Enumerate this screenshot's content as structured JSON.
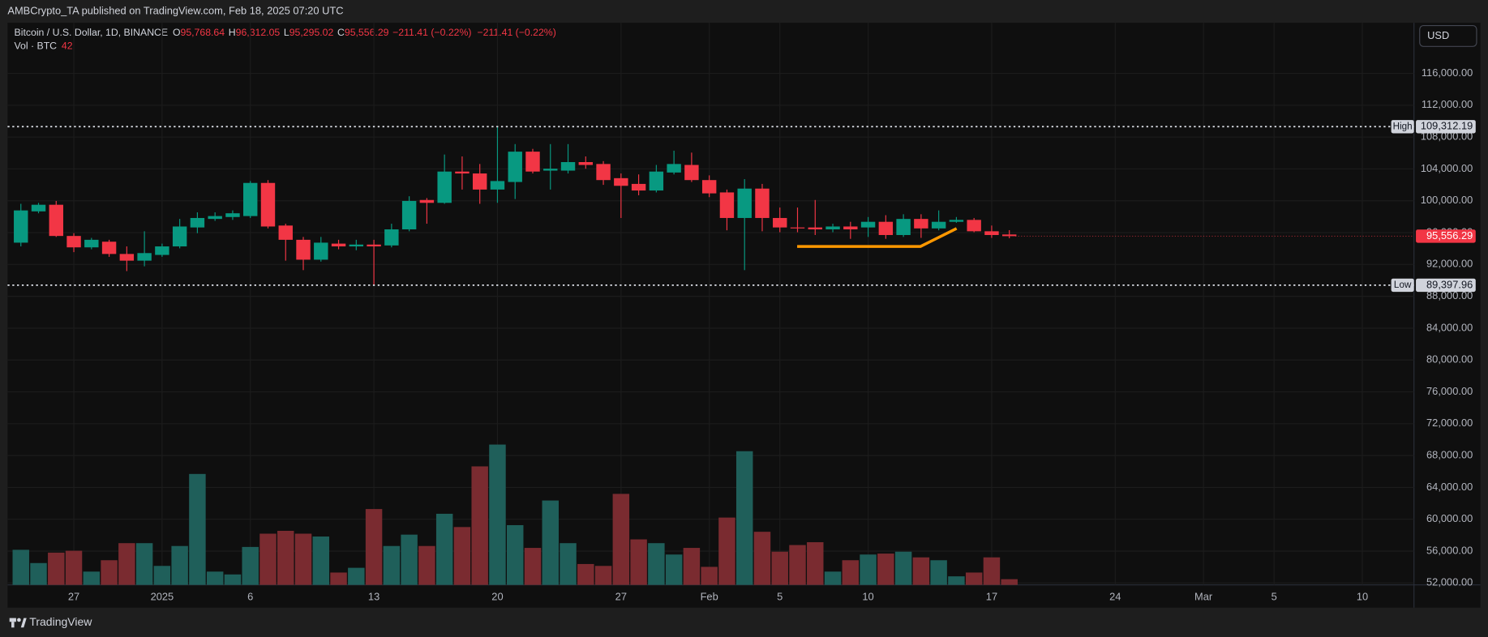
{
  "header": {
    "text": "AMBCrypto_TA published on TradingView.com, Feb 18, 2025 07:20 UTC"
  },
  "footer": {
    "brand": "TradingView"
  },
  "currency_button": "USD",
  "chart_data": {
    "type": "candlestick",
    "legend": {
      "symbol": "Bitcoin / U.S. Dollar, 1D, BINANCE",
      "items": [
        {
          "key": "O",
          "value": "95,768.64"
        },
        {
          "key": "H",
          "value": "96,312.05"
        },
        {
          "key": "L",
          "value": "95,295.02"
        },
        {
          "key": "C",
          "value": "95,556.29"
        }
      ],
      "changes": [
        "−211.41 (−0.22%)",
        "−211.41 (−0.22%)"
      ]
    },
    "volume_legend": {
      "label": "Vol · BTC",
      "value": "42"
    },
    "categories": [
      null,
      null,
      null,
      "27",
      null,
      null,
      null,
      null,
      "2025",
      null,
      null,
      null,
      null,
      "6",
      null,
      null,
      null,
      null,
      null,
      null,
      "13",
      null,
      null,
      null,
      null,
      null,
      null,
      "20",
      null,
      null,
      null,
      null,
      null,
      null,
      "27",
      null,
      null,
      null,
      null,
      "Feb",
      null,
      null,
      null,
      "5",
      null,
      null,
      null,
      null,
      "10",
      null,
      null,
      null,
      null,
      null,
      null,
      "17",
      null,
      null,
      null,
      null,
      null,
      null,
      "24",
      null,
      null,
      null,
      null,
      "Mar",
      null,
      null,
      null,
      "5",
      null,
      null,
      null,
      null,
      "10",
      null,
      null
    ],
    "open": [
      94740,
      98670,
      99500,
      95580,
      94150,
      94860,
      93320,
      92480,
      93200,
      94270,
      96650,
      97720,
      97960,
      98080,
      102240,
      96890,
      95100,
      92600,
      94620,
      94270,
      94500,
      94390,
      96410,
      100100,
      99740,
      103670,
      103430,
      101410,
      102360,
      106170,
      103790,
      103790,
      104860,
      104620,
      102840,
      102120,
      101290,
      103550,
      104500,
      102600,
      101050,
      97840,
      101530,
      97840,
      96650,
      96650,
      96410,
      96770,
      96650,
      97360,
      95700,
      97720,
      96530,
      97360,
      97600,
      96170,
      95768.64,
      null,
      null,
      null,
      null,
      null,
      null,
      null,
      null,
      null,
      null,
      null,
      null,
      null,
      null,
      null,
      null,
      null,
      null,
      null,
      null,
      null,
      null
    ],
    "high": [
      99620,
      99740,
      99980,
      95930,
      95340,
      95100,
      94270,
      96170,
      94620,
      97720,
      98550,
      98550,
      98790,
      102480,
      102600,
      97120,
      95460,
      95460,
      95100,
      95100,
      95100,
      97120,
      100570,
      100340,
      105810,
      105570,
      104620,
      109312.19,
      107120,
      106520,
      107120,
      107120,
      105570,
      104980,
      103430,
      103310,
      104500,
      106290,
      106050,
      103190,
      101410,
      102720,
      102120,
      99150,
      99150,
      100100,
      97120,
      97360,
      97960,
      98190,
      98310,
      98310,
      98790,
      97960,
      97840,
      96890,
      96312.05,
      null,
      null,
      null,
      null,
      null,
      null,
      null,
      null,
      null,
      null,
      null,
      null,
      null,
      null,
      null,
      null,
      null,
      null,
      null,
      null,
      null,
      null
    ],
    "low": [
      94270,
      98430,
      95460,
      93550,
      93910,
      92960,
      91170,
      91770,
      92960,
      94030,
      95930,
      97480,
      97600,
      97840,
      96530,
      92480,
      91290,
      92360,
      93910,
      93790,
      89397.96,
      94150,
      96170,
      97120,
      99620,
      101410,
      99620,
      99740,
      100220,
      103430,
      101410,
      103430,
      104030,
      102000,
      97840,
      100690,
      101050,
      103310,
      102360,
      100460,
      96290,
      91290,
      96170,
      96050,
      96050,
      95700,
      96050,
      95220,
      95460,
      95220,
      95460,
      95340,
      96290,
      97240,
      96050,
      95340,
      95295.02,
      null,
      null,
      null,
      null,
      null,
      null,
      null,
      null,
      null,
      null,
      null,
      null,
      null,
      null,
      null,
      null,
      null,
      null,
      null,
      null,
      null,
      null
    ],
    "close": [
      98790,
      99500,
      95580,
      94150,
      95100,
      93320,
      92480,
      93430,
      94270,
      96770,
      97840,
      98080,
      98430,
      102240,
      96770,
      95100,
      92600,
      94740,
      94270,
      94500,
      94270,
      96410,
      99980,
      99740,
      103670,
      103430,
      101410,
      102480,
      106170,
      103670,
      104030,
      104860,
      104500,
      102600,
      101880,
      101290,
      103670,
      104620,
      102600,
      100930,
      97840,
      101530,
      97840,
      96650,
      96530,
      96410,
      96770,
      96410,
      97360,
      95700,
      97720,
      96530,
      97360,
      97600,
      96170,
      95700,
      95556.29,
      null,
      null,
      null,
      null,
      null,
      null,
      null,
      null,
      null,
      null,
      null,
      null,
      null,
      null,
      null,
      null,
      null,
      null,
      null,
      null,
      null,
      null
    ],
    "volume": [
      259,
      161,
      238,
      252,
      98,
      182,
      308,
      308,
      140,
      287,
      819,
      98,
      77,
      280,
      378,
      399,
      378,
      357,
      91,
      126,
      560,
      287,
      371,
      287,
      525,
      427,
      875,
      1036,
      441,
      273,
      623,
      308,
      154,
      140,
      672,
      336,
      308,
      224,
      273,
      133,
      497,
      987,
      392,
      245,
      294,
      315,
      98,
      182,
      224,
      231,
      245,
      203,
      182,
      63,
      91,
      203,
      42,
      null,
      null,
      null,
      null,
      null,
      null,
      null,
      null,
      null,
      null,
      null,
      null,
      null,
      null,
      null,
      null,
      null,
      null,
      null,
      null,
      null,
      null
    ],
    "up_color": "#089981",
    "down_color": "#f23645",
    "volume_up_color": "#1f5f5a",
    "volume_down_color": "#7a2b30",
    "ylim": [
      51760,
      122360
    ],
    "yticks": [
      {
        "value": 52000,
        "label": "52,000.00"
      },
      {
        "value": 56000,
        "label": "56,000.00"
      },
      {
        "value": 60000,
        "label": "60,000.00"
      },
      {
        "value": 64000,
        "label": "64,000.00"
      },
      {
        "value": 68000,
        "label": "68,000.00"
      },
      {
        "value": 72000,
        "label": "72,000.00"
      },
      {
        "value": 76000,
        "label": "76,000.00"
      },
      {
        "value": 80000,
        "label": "80,000.00"
      },
      {
        "value": 84000,
        "label": "84,000.00"
      },
      {
        "value": 88000,
        "label": "88,000.00"
      },
      {
        "value": 92000,
        "label": "92,000.00"
      },
      {
        "value": 96000,
        "label": "96,000.00"
      },
      {
        "value": 100000,
        "label": "100,000.00"
      },
      {
        "value": 104000,
        "label": "104,000.00"
      },
      {
        "value": 108000,
        "label": "108,000.00"
      },
      {
        "value": 112000,
        "label": "112,000.00"
      },
      {
        "value": 116000,
        "label": "116,000.00"
      }
    ],
    "grid": true,
    "markers": [
      {
        "label": "High",
        "value": 109312.19,
        "value_label": "109,312.19"
      },
      {
        "label": "Low",
        "value": 89397.96,
        "value_label": "89,397.96"
      }
    ],
    "last_price_label": "95,556.29"
  }
}
